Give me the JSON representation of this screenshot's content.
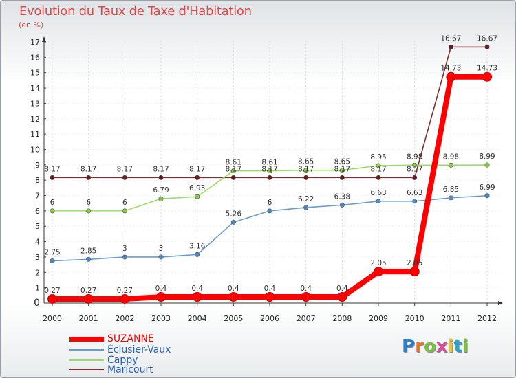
{
  "chart_data": {
    "type": "line",
    "title": "Evolution du Taux de Taxe d'Habitation",
    "ylabel": "(en %)",
    "xlabel": "",
    "x": [
      "2000",
      "2001",
      "2002",
      "2003",
      "2004",
      "2005",
      "2006",
      "2007",
      "2008",
      "2009",
      "2010",
      "2011",
      "2012"
    ],
    "ylim": [
      0,
      17
    ],
    "yticks": [
      "0",
      "1",
      "2",
      "3",
      "4",
      "5",
      "6",
      "7",
      "8",
      "9",
      "10",
      "11",
      "12",
      "13",
      "14",
      "15",
      "16",
      "17"
    ],
    "series": [
      {
        "name": "SUZANNE",
        "color": "#ff0000",
        "marker": "#ff0000",
        "values": [
          0.27,
          0.27,
          0.27,
          0.4,
          0.4,
          0.4,
          0.4,
          0.4,
          0.4,
          2.05,
          2.05,
          14.73,
          14.73
        ],
        "labels": [
          "0.27",
          "0.27",
          "0.27",
          "0.4",
          "0.4",
          "0.4",
          "0.4",
          "0.4",
          "0.4",
          "2.05",
          "2.05",
          "14.73",
          "14.73"
        ]
      },
      {
        "name": "Éclusier-Vaux",
        "color": "#6b9bc8",
        "marker": "#4f8bc9",
        "values": [
          2.75,
          2.85,
          3,
          3,
          3.16,
          5.26,
          6,
          6.22,
          6.38,
          6.63,
          6.63,
          6.85,
          6.99
        ],
        "labels": [
          "2.75",
          "2.85",
          "3",
          "3",
          "3.16",
          "5.26",
          "6",
          "6.22",
          "6.38",
          "6.63",
          "6.63",
          "6.85",
          "6.99"
        ]
      },
      {
        "name": "Cappy",
        "color": "#99dd66",
        "marker": "#88cc44",
        "values": [
          6,
          6,
          6,
          6.79,
          6.93,
          8.61,
          8.61,
          8.65,
          8.65,
          8.95,
          8.98,
          8.98,
          8.99
        ],
        "labels": [
          "6",
          "6",
          "6",
          "6.79",
          "6.93",
          "8.61",
          "8.61",
          "8.65",
          "8.65",
          "8.95",
          "8.98",
          "8.98",
          "8.99"
        ]
      },
      {
        "name": "Maricourt",
        "color": "#7a3030",
        "marker": "#6a1a1a",
        "values": [
          8.17,
          8.17,
          8.17,
          8.17,
          8.17,
          8.17,
          8.17,
          8.17,
          8.17,
          8.17,
          8.17,
          16.67,
          16.67
        ],
        "labels": [
          "8.17",
          "8.17",
          "8.17",
          "8.17",
          "8.17",
          "8.17",
          "8.17",
          "8.17",
          "8.17",
          "8.17",
          "8.17",
          "16.67",
          "16.67"
        ]
      }
    ],
    "legend": [
      "SUZANNE",
      "Éclusier-Vaux",
      "Cappy",
      "Maricourt"
    ]
  },
  "logo": {
    "letters": [
      "P",
      "r",
      "o",
      "x",
      "i",
      "t",
      "i"
    ],
    "colors": [
      "#2e7fc8",
      "#e8742a",
      "#7cc142",
      "#d84c9a",
      "#e8c52a",
      "#2e9fc8",
      "#7cc142"
    ]
  }
}
